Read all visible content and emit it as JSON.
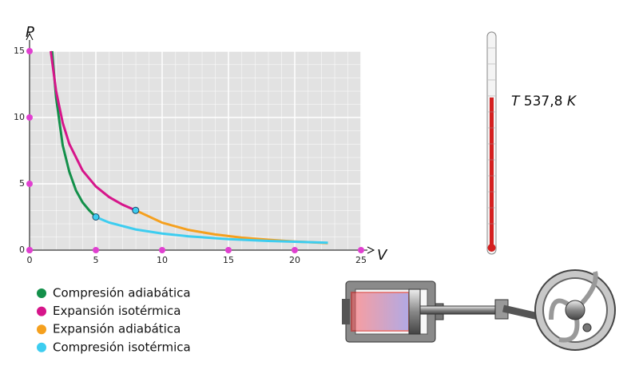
{
  "chart_data": {
    "type": "line",
    "x_label": "V",
    "y_label": "P",
    "xlim": [
      0,
      25
    ],
    "ylim": [
      0,
      15
    ],
    "xticks": [
      0,
      5,
      10,
      15,
      20,
      25
    ],
    "yticks": [
      0,
      5,
      10,
      15
    ],
    "grid": true,
    "series": [
      {
        "name": "Compresión adiabática",
        "color": "#13904a",
        "x": [
          1.7,
          2,
          2.5,
          3,
          3.5,
          4,
          4.5,
          5
        ],
        "values": [
          15,
          11.5,
          7.9,
          5.9,
          4.5,
          3.6,
          3.0,
          2.5
        ]
      },
      {
        "name": "Expansión isotérmica",
        "color": "#d6158a",
        "x": [
          1.6,
          2,
          2.5,
          3,
          4,
          5,
          6,
          7,
          8
        ],
        "values": [
          15,
          12,
          9.6,
          8,
          6,
          4.8,
          4,
          3.43,
          3
        ]
      },
      {
        "name": "Expansión adiabática",
        "color": "#f5a01e",
        "x": [
          8,
          10,
          12,
          14,
          16,
          18,
          20,
          22.5
        ],
        "values": [
          3,
          2.07,
          1.52,
          1.18,
          0.94,
          0.78,
          0.65,
          0.53
        ]
      },
      {
        "name": "Compresión isotérmica",
        "color": "#3dcdf0",
        "x": [
          5,
          6,
          8,
          10,
          12,
          15,
          18,
          22.5
        ],
        "values": [
          2.5,
          2.08,
          1.56,
          1.25,
          1.04,
          0.83,
          0.69,
          0.56
        ]
      }
    ],
    "points": {
      "x": [
        5,
        8
      ],
      "values": [
        2.5,
        3
      ],
      "color": "#3dcdf0"
    }
  },
  "thermometer": {
    "symbol": "T",
    "reading": "537,8",
    "unit": "K"
  }
}
